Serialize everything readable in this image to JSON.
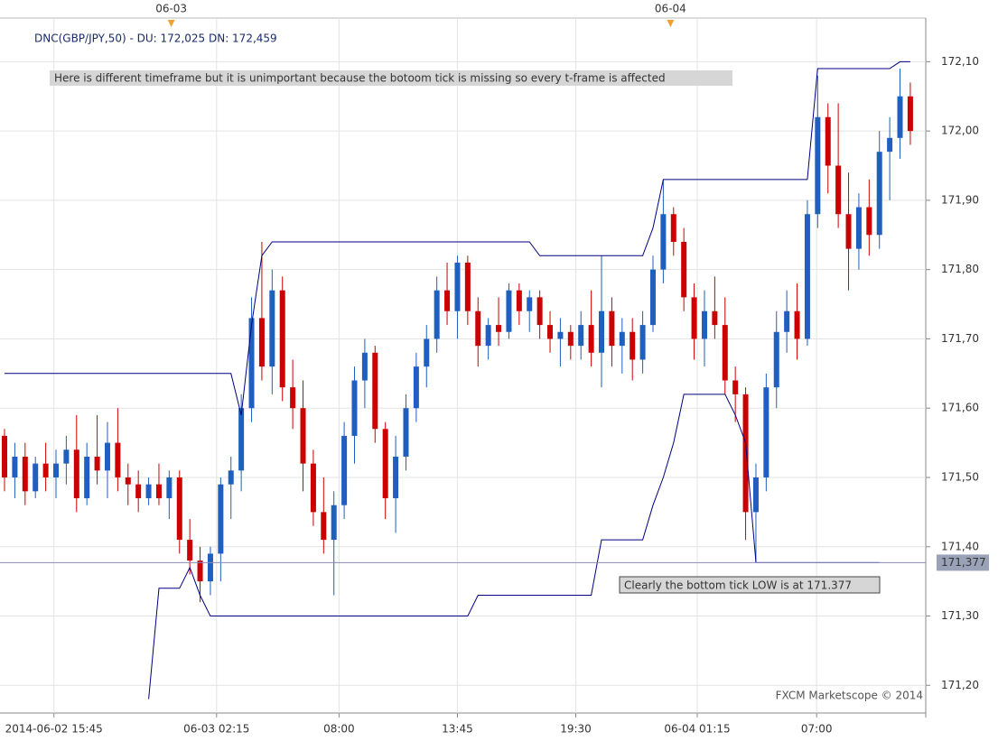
{
  "chart_data": {
    "type": "candlestick",
    "legend": "DNC(GBP/JPY,50) -  DU: 172,025  DN: 172,459",
    "annotations": [
      "Here is different timeframe but it is unimportant because the botoom tick is missing so every t-frame is affected",
      "Clearly the bottom tick LOW is at 171.377"
    ],
    "watermark": "FXCM Marketscope © 2014",
    "up_color": "#1f5fbf",
    "down_color": "#cc0000",
    "grid": true,
    "xlim": [
      -0.44,
      89.5
    ],
    "ylim": [
      171.16,
      172.163
    ],
    "yticks": [
      {
        "value": 171.2,
        "label": "171,20"
      },
      {
        "value": 171.3,
        "label": "171,30"
      },
      {
        "value": 171.4,
        "label": "171,40"
      },
      {
        "value": 171.5,
        "label": "171,50"
      },
      {
        "value": 171.6,
        "label": "171,60"
      },
      {
        "value": 171.7,
        "label": "171,70"
      },
      {
        "value": 171.8,
        "label": "171,80"
      },
      {
        "value": 171.9,
        "label": "171,90"
      },
      {
        "value": 172.0,
        "label": "172,00"
      },
      {
        "value": 172.1,
        "label": "172,10"
      }
    ],
    "xticks": [
      {
        "value": 4.8,
        "label": "2014-06-02 15:45"
      },
      {
        "value": 20.6,
        "label": "06-03 02:15"
      },
      {
        "value": 32.5,
        "label": "08:00"
      },
      {
        "value": 44,
        "label": "13:45"
      },
      {
        "value": 55.5,
        "label": "19:30"
      },
      {
        "value": 67.3,
        "label": "06-04 01:15"
      },
      {
        "value": 78.9,
        "label": "07:00"
      }
    ],
    "day_markers": [
      {
        "value": 16.2,
        "label": "06-03"
      },
      {
        "value": 64.7,
        "label": "06-04"
      }
    ],
    "reference_line": {
      "value": 171.377,
      "label": "171,377"
    },
    "candles": [
      [
        171.56,
        171.57,
        171.48,
        171.5
      ],
      [
        171.5,
        171.55,
        171.47,
        171.53
      ],
      [
        171.53,
        171.55,
        171.46,
        171.48
      ],
      [
        171.48,
        171.53,
        171.47,
        171.52
      ],
      [
        171.52,
        171.55,
        171.48,
        171.5
      ],
      [
        171.5,
        171.54,
        171.47,
        171.52
      ],
      [
        171.52,
        171.56,
        171.49,
        171.54
      ],
      [
        171.54,
        171.59,
        171.45,
        171.47
      ],
      [
        171.47,
        171.55,
        171.46,
        171.53
      ],
      [
        171.53,
        171.59,
        171.49,
        171.51
      ],
      [
        171.51,
        171.58,
        171.47,
        171.55
      ],
      [
        171.55,
        171.6,
        171.48,
        171.5
      ],
      [
        171.5,
        171.52,
        171.46,
        171.49
      ],
      [
        171.49,
        171.51,
        171.45,
        171.47
      ],
      [
        171.47,
        171.5,
        171.46,
        171.49
      ],
      [
        171.49,
        171.52,
        171.46,
        171.47
      ],
      [
        171.47,
        171.51,
        171.44,
        171.5
      ],
      [
        171.5,
        171.51,
        171.39,
        171.41
      ],
      [
        171.41,
        171.44,
        171.36,
        171.38
      ],
      [
        171.38,
        171.4,
        171.32,
        171.35
      ],
      [
        171.35,
        171.4,
        171.33,
        171.39
      ],
      [
        171.39,
        171.5,
        171.35,
        171.49
      ],
      [
        171.49,
        171.53,
        171.44,
        171.51
      ],
      [
        171.51,
        171.62,
        171.48,
        171.6
      ],
      [
        171.6,
        171.76,
        171.58,
        171.73
      ],
      [
        171.73,
        171.84,
        171.64,
        171.66
      ],
      [
        171.66,
        171.8,
        171.62,
        171.77
      ],
      [
        171.77,
        171.79,
        171.61,
        171.63
      ],
      [
        171.63,
        171.67,
        171.57,
        171.6
      ],
      [
        171.6,
        171.64,
        171.48,
        171.52
      ],
      [
        171.52,
        171.54,
        171.43,
        171.45
      ],
      [
        171.45,
        171.5,
        171.39,
        171.41
      ],
      [
        171.41,
        171.48,
        171.33,
        171.46
      ],
      [
        171.46,
        171.58,
        171.44,
        171.56
      ],
      [
        171.56,
        171.66,
        171.52,
        171.64
      ],
      [
        171.64,
        171.7,
        171.6,
        171.68
      ],
      [
        171.68,
        171.69,
        171.55,
        171.57
      ],
      [
        171.57,
        171.58,
        171.44,
        171.47
      ],
      [
        171.47,
        171.56,
        171.42,
        171.53
      ],
      [
        171.53,
        171.62,
        171.51,
        171.6
      ],
      [
        171.6,
        171.68,
        171.58,
        171.66
      ],
      [
        171.66,
        171.72,
        171.63,
        171.7
      ],
      [
        171.7,
        171.79,
        171.68,
        171.77
      ],
      [
        171.77,
        171.81,
        171.72,
        171.74
      ],
      [
        171.74,
        171.82,
        171.7,
        171.81
      ],
      [
        171.81,
        171.82,
        171.72,
        171.74
      ],
      [
        171.74,
        171.76,
        171.66,
        171.69
      ],
      [
        171.69,
        171.73,
        171.67,
        171.72
      ],
      [
        171.72,
        171.76,
        171.69,
        171.71
      ],
      [
        171.71,
        171.78,
        171.7,
        171.77
      ],
      [
        171.77,
        171.78,
        171.72,
        171.74
      ],
      [
        171.74,
        171.77,
        171.71,
        171.76
      ],
      [
        171.76,
        171.77,
        171.7,
        171.72
      ],
      [
        171.72,
        171.74,
        171.68,
        171.7
      ],
      [
        171.7,
        171.73,
        171.66,
        171.71
      ],
      [
        171.71,
        171.72,
        171.67,
        171.69
      ],
      [
        171.69,
        171.74,
        171.67,
        171.72
      ],
      [
        171.72,
        171.77,
        171.66,
        171.68
      ],
      [
        171.68,
        171.82,
        171.63,
        171.74
      ],
      [
        171.74,
        171.76,
        171.66,
        171.69
      ],
      [
        171.69,
        171.73,
        171.65,
        171.71
      ],
      [
        171.71,
        171.73,
        171.64,
        171.67
      ],
      [
        171.67,
        171.74,
        171.65,
        171.72
      ],
      [
        171.72,
        171.82,
        171.71,
        171.8
      ],
      [
        171.8,
        171.93,
        171.78,
        171.88
      ],
      [
        171.88,
        171.89,
        171.82,
        171.84
      ],
      [
        171.84,
        171.86,
        171.74,
        171.76
      ],
      [
        171.76,
        171.78,
        171.67,
        171.7
      ],
      [
        171.7,
        171.77,
        171.66,
        171.74
      ],
      [
        171.74,
        171.79,
        171.7,
        171.72
      ],
      [
        171.72,
        171.76,
        171.62,
        171.64
      ],
      [
        171.64,
        171.66,
        171.58,
        171.62
      ],
      [
        171.62,
        171.63,
        171.41,
        171.45
      ],
      [
        171.45,
        171.52,
        171.377,
        171.5
      ],
      [
        171.5,
        171.65,
        171.48,
        171.63
      ],
      [
        171.63,
        171.74,
        171.6,
        171.71
      ],
      [
        171.71,
        171.77,
        171.68,
        171.74
      ],
      [
        171.74,
        171.78,
        171.67,
        171.7
      ],
      [
        171.7,
        171.9,
        171.69,
        171.88
      ],
      [
        171.88,
        172.08,
        171.86,
        172.02
      ],
      [
        172.02,
        172.04,
        171.91,
        171.95
      ],
      [
        171.95,
        172.04,
        171.86,
        171.88
      ],
      [
        171.88,
        171.94,
        171.77,
        171.83
      ],
      [
        171.83,
        171.91,
        171.8,
        171.89
      ],
      [
        171.89,
        171.93,
        171.82,
        171.85
      ],
      [
        171.85,
        172.0,
        171.83,
        171.97
      ],
      [
        171.97,
        172.02,
        171.9,
        171.99
      ],
      [
        171.99,
        172.09,
        171.96,
        172.05
      ],
      [
        172.05,
        172.07,
        171.98,
        172.0
      ]
    ],
    "channels": [
      {
        "color": "#000080",
        "values": [
          171.65,
          171.65,
          171.65,
          171.65,
          171.65,
          171.65,
          171.65,
          171.65,
          171.65,
          171.65,
          171.65,
          171.65,
          171.65,
          171.65,
          171.65,
          171.65,
          171.65,
          171.65,
          171.65,
          171.65,
          171.65,
          171.65,
          171.65,
          171.59,
          171.72,
          171.82,
          171.84,
          171.84,
          171.84,
          171.84,
          171.84,
          171.84,
          171.84,
          171.84,
          171.84,
          171.84,
          171.84,
          171.84,
          171.84,
          171.84,
          171.84,
          171.84,
          171.84,
          171.84,
          171.84,
          171.84,
          171.84,
          171.84,
          171.84,
          171.84,
          171.84,
          171.84,
          171.82,
          171.82,
          171.82,
          171.82,
          171.82,
          171.82,
          171.82,
          171.82,
          171.82,
          171.82,
          171.82,
          171.86,
          171.93,
          171.93,
          171.93,
          171.93,
          171.93,
          171.93,
          171.93,
          171.93,
          171.93,
          171.93,
          171.93,
          171.93,
          171.93,
          171.93,
          171.93,
          172.09,
          172.09,
          172.09,
          172.09,
          172.09,
          172.09,
          172.09,
          172.09,
          172.1,
          172.1
        ]
      },
      {
        "color": "#000080",
        "values": [
          null,
          null,
          null,
          null,
          null,
          null,
          null,
          null,
          null,
          null,
          null,
          null,
          null,
          null,
          171.18,
          171.34,
          171.34,
          171.34,
          171.37,
          171.33,
          171.3,
          171.3,
          171.3,
          171.3,
          171.3,
          171.3,
          171.3,
          171.3,
          171.3,
          171.3,
          171.3,
          171.3,
          171.3,
          171.3,
          171.3,
          171.3,
          171.3,
          171.3,
          171.3,
          171.3,
          171.3,
          171.3,
          171.3,
          171.3,
          171.3,
          171.3,
          171.33,
          171.33,
          171.33,
          171.33,
          171.33,
          171.33,
          171.33,
          171.33,
          171.33,
          171.33,
          171.33,
          171.33,
          171.41,
          171.41,
          171.41,
          171.41,
          171.41,
          171.46,
          171.5,
          171.55,
          171.62,
          171.62,
          171.62,
          171.62,
          171.62,
          171.59,
          171.55,
          171.377,
          171.377,
          171.377,
          171.377,
          171.377,
          171.377,
          171.377,
          171.377,
          171.377,
          171.377,
          171.377,
          171.377,
          171.377
        ]
      }
    ]
  }
}
